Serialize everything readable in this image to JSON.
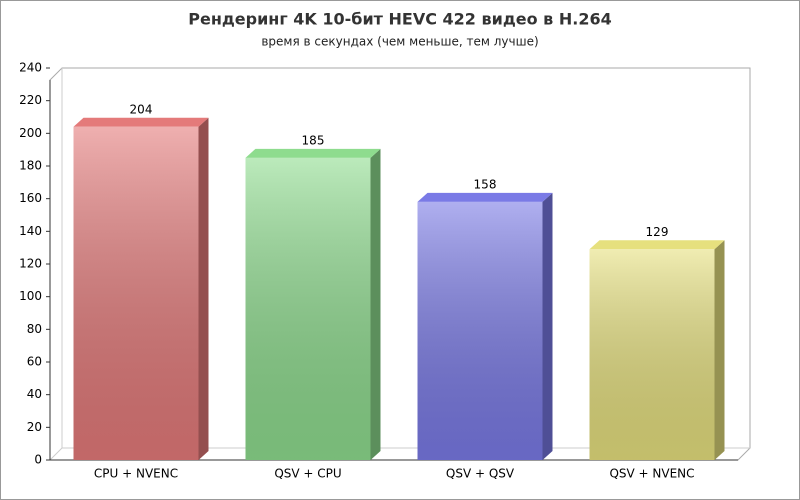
{
  "chart_data": {
    "type": "bar3d",
    "title": "Рендеринг 4K 10-бит HEVC 422 видео в H.264",
    "subtitle": "время в секундах (чем меньше, тем лучше)",
    "categories": [
      "CPU + NVENC",
      "QSV + CPU",
      "QSV + QSV",
      "QSV + NVENC"
    ],
    "values": [
      204,
      185,
      158,
      129
    ],
    "colors": [
      "#e47a7a",
      "#8edc8e",
      "#7a7ae6",
      "#e6e07e"
    ],
    "ylim": [
      0,
      240
    ],
    "yticks": [
      0,
      20,
      40,
      60,
      80,
      100,
      120,
      140,
      160,
      180,
      200,
      220,
      240
    ]
  }
}
